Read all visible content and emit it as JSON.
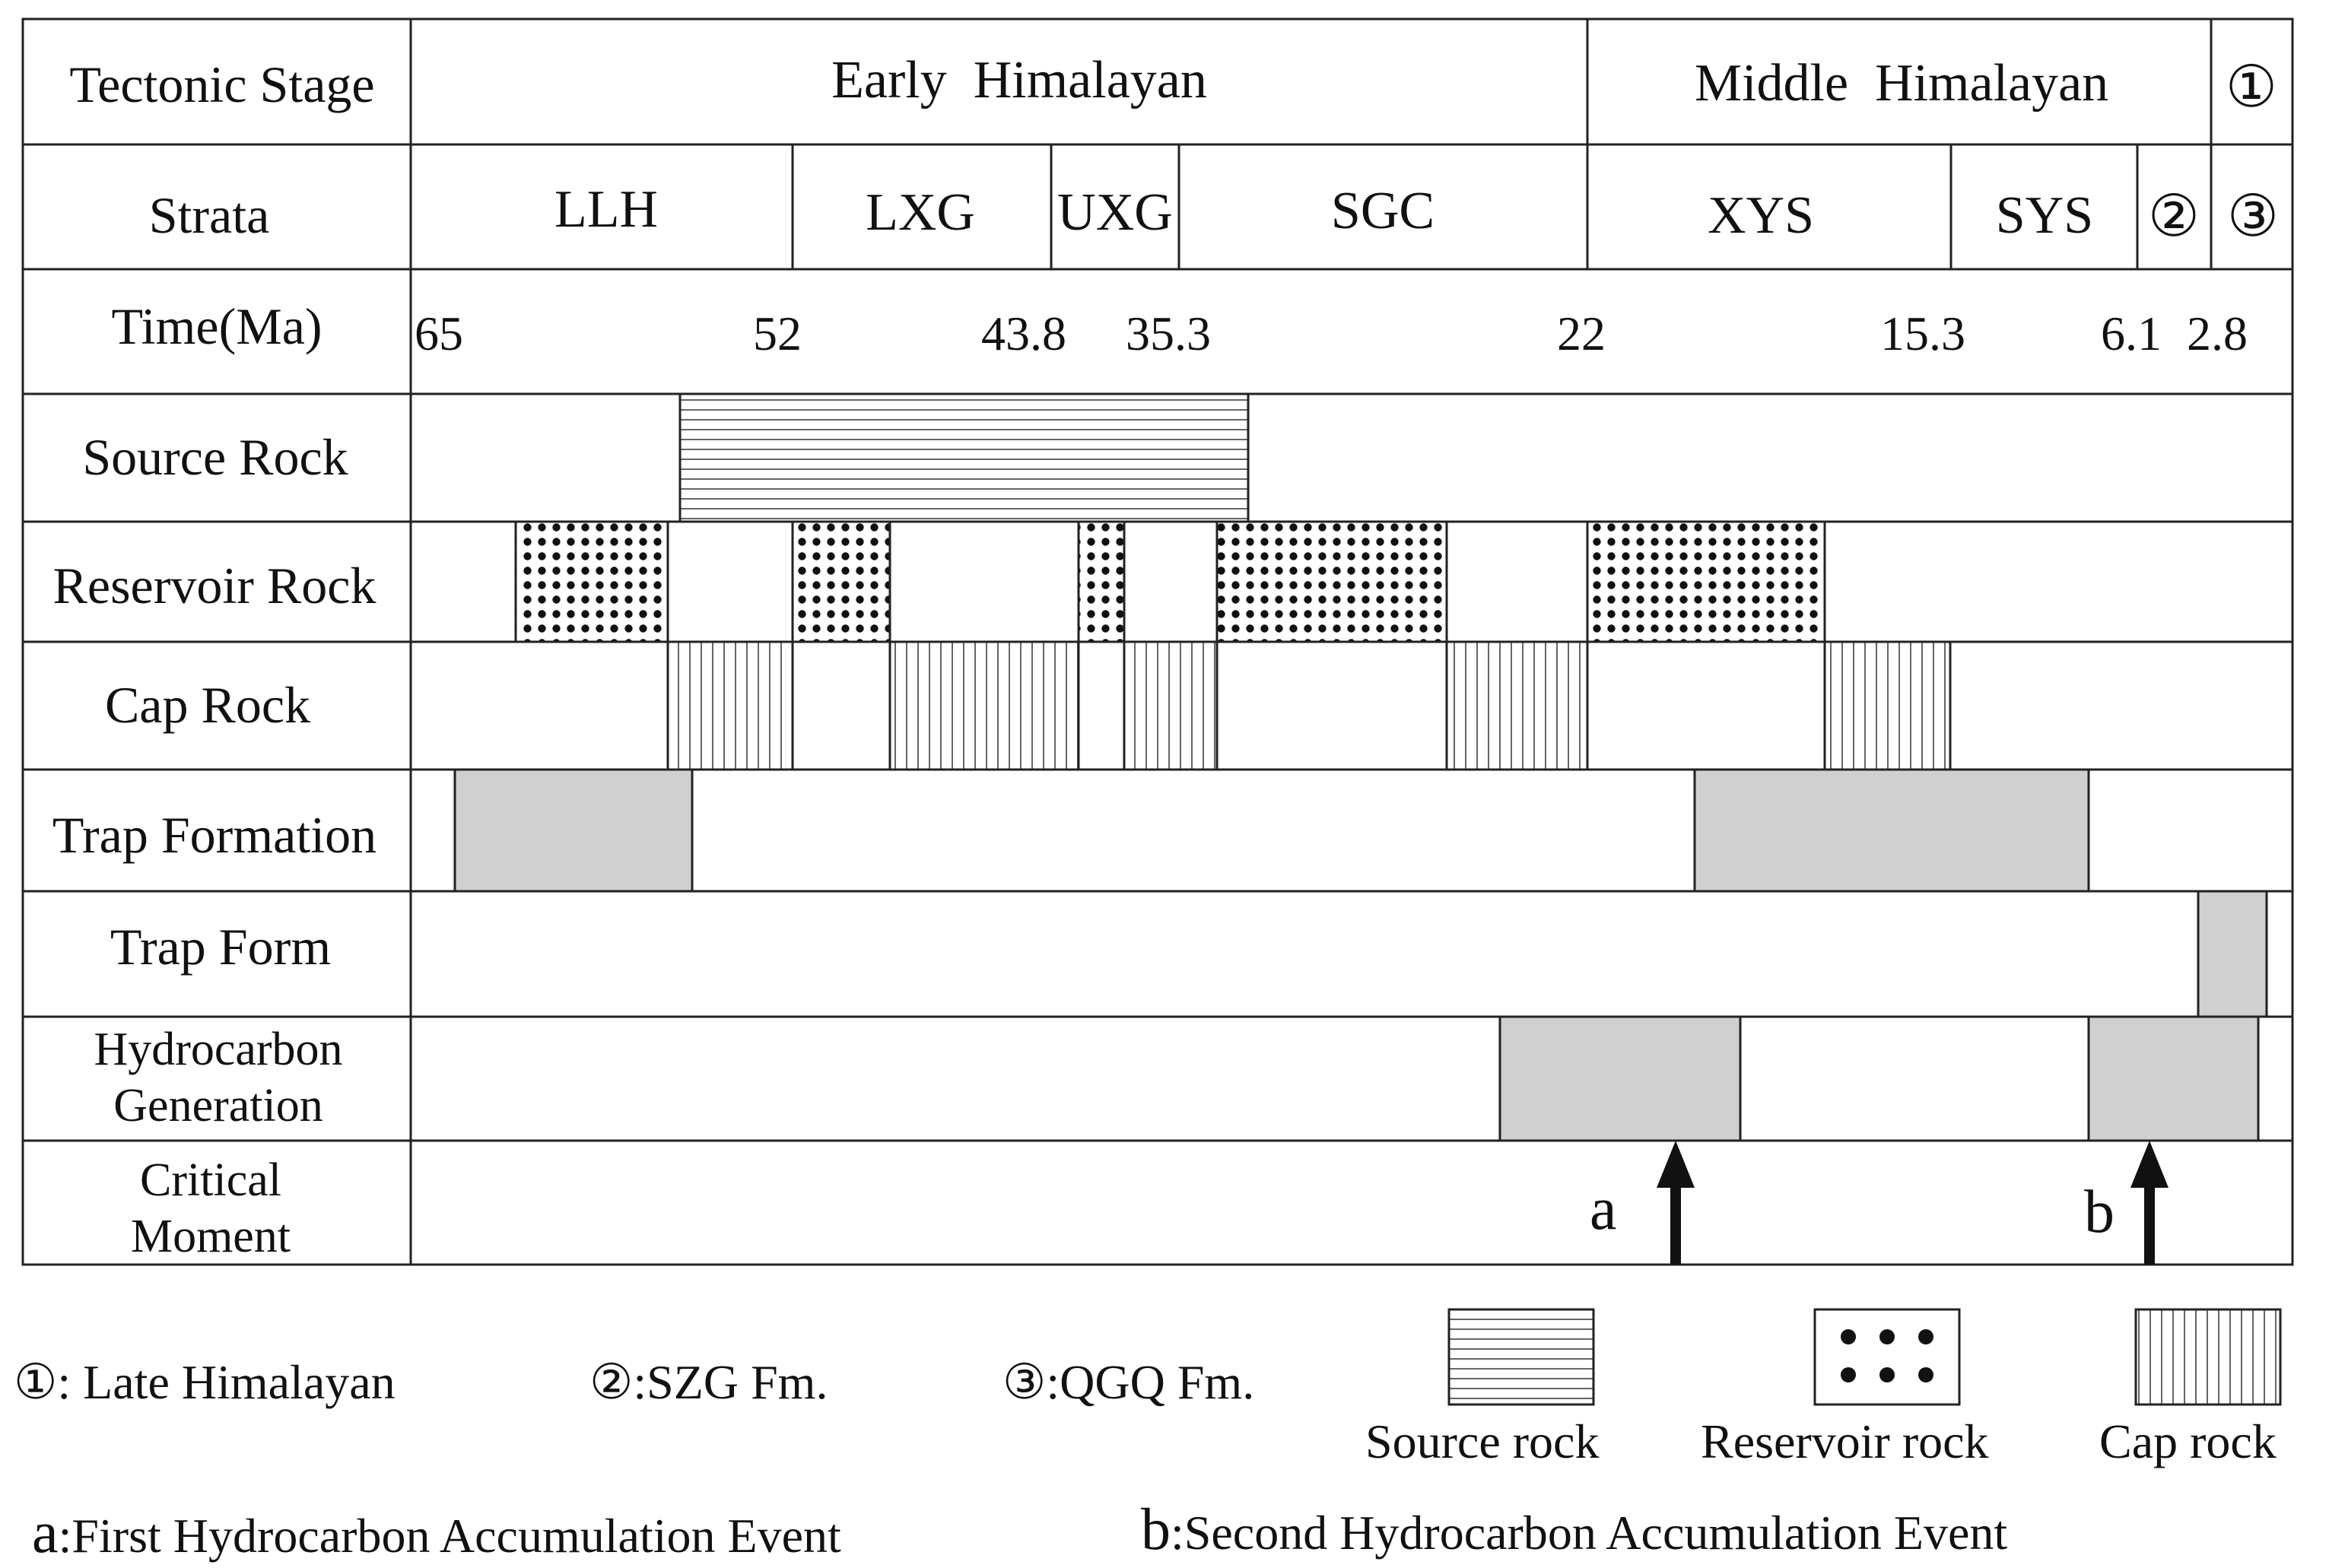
{
  "row_labels": {
    "tectonic": "Tectonic Stage",
    "strata": "Strata",
    "time": "Time(Ma)",
    "source": "Source Rock",
    "reservoir": "Reservoir Rock",
    "cap": "Cap Rock",
    "trap_formation": "Trap Formation",
    "trap_form": "Trap Form",
    "generation": [
      "Hydrocarbon",
      "Generation"
    ],
    "critical": [
      "Critical",
      "Moment"
    ]
  },
  "tectonic_stages": [
    "Early  Himalayan",
    "Middle  Himalayan",
    "①"
  ],
  "strata": [
    "LLH",
    "LXG",
    "UXG",
    "SGC",
    "XYS",
    "SYS",
    "②",
    "③"
  ],
  "time_ticks": [
    "65",
    "52",
    "43.8",
    "35.3",
    "22",
    "15.3",
    "6.1",
    "2.8"
  ],
  "critical_events": [
    "a",
    "b"
  ],
  "legend": {
    "notes": [
      {
        "symbol": "①",
        "text": ": Late Himalayan"
      },
      {
        "symbol": "②",
        "text": ":SZG Fm."
      },
      {
        "symbol": "③",
        "text": ":QGQ Fm."
      }
    ],
    "patterns": [
      "Source rock",
      "Reservoir rock",
      "Cap rock"
    ],
    "events": [
      {
        "symbol": "a",
        "text": ":First Hydrocarbon Accumulation Event"
      },
      {
        "symbol": "b",
        "text": ":Second Hydrocarbon Accumulation Event"
      }
    ]
  },
  "colors": {
    "line": "#222222",
    "fill_gray": "#d0d0d0",
    "pattern": "#555555",
    "dot": "#111111"
  }
}
